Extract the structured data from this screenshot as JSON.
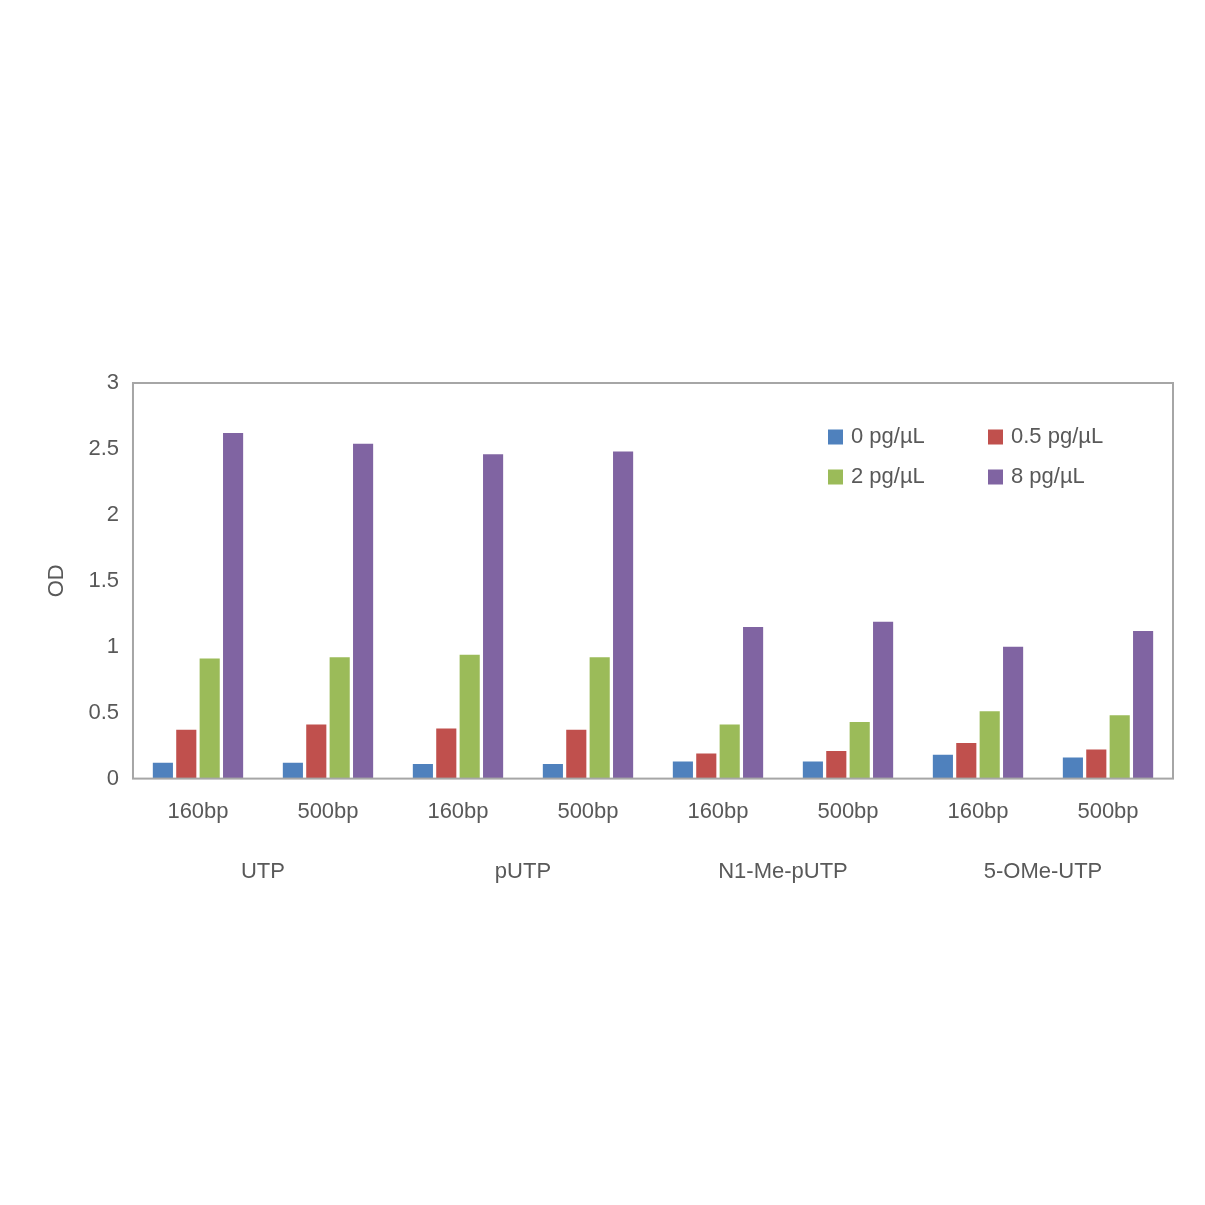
{
  "chart_data": {
    "type": "bar",
    "y_label": "OD",
    "categories": [
      "160bp",
      "500bp",
      "160bp",
      "500bp",
      "160bp",
      "500bp",
      "160bp",
      "500bp"
    ],
    "groups": [
      "UTP",
      "pUTP",
      "N1-Me-pUTP",
      "5-OMe-UTP"
    ],
    "series": [
      {
        "name": "0 pg/µL",
        "color": "#4f81bd",
        "values": [
          0.12,
          0.12,
          0.11,
          0.11,
          0.13,
          0.13,
          0.18,
          0.16
        ]
      },
      {
        "name": "0.5 pg/µL",
        "color": "#c0504d",
        "values": [
          0.37,
          0.41,
          0.38,
          0.37,
          0.19,
          0.21,
          0.27,
          0.22
        ]
      },
      {
        "name": "2 pg/µL",
        "color": "#9bbb59",
        "values": [
          0.91,
          0.92,
          0.94,
          0.92,
          0.41,
          0.43,
          0.51,
          0.48
        ]
      },
      {
        "name": "8 pg/µL",
        "color": "#8064a2",
        "values": [
          2.62,
          2.54,
          2.46,
          2.48,
          1.15,
          1.19,
          1.0,
          1.12
        ]
      }
    ],
    "ylim": [
      0,
      3
    ],
    "yticks": [
      0,
      0.5,
      1,
      1.5,
      2,
      2.5,
      3
    ],
    "grid": false,
    "legend": "top-right"
  }
}
